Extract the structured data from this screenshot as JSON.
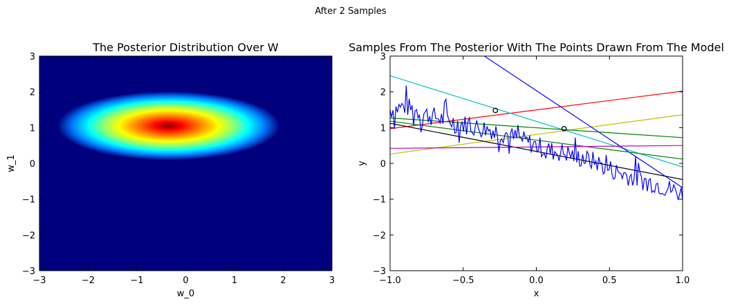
{
  "figure": {
    "suptitle": "After 2 Samples"
  },
  "chart_data": [
    {
      "type": "heatmap",
      "title": "The Posterior Distribution Over W",
      "xlabel": "w_0",
      "ylabel": "w_1",
      "xlim": [
        -3,
        3
      ],
      "ylim": [
        -3,
        3
      ],
      "xticks": [
        -3,
        -2,
        -1,
        0,
        1,
        2,
        3
      ],
      "yticks": [
        -3,
        -2,
        -1,
        0,
        1,
        2,
        3
      ],
      "xtick_labels": [
        "−3",
        "−2",
        "−1",
        "0",
        "1",
        "2",
        "3"
      ],
      "ytick_labels": [
        "−3",
        "−2",
        "−1",
        "0",
        "1",
        "2",
        "3"
      ],
      "colormap": "jet",
      "background_color": "#00007f",
      "peak_color": "#7f0000",
      "posterior": {
        "mean_w0": -0.35,
        "mean_w1": 1.05,
        "spread_w0": 0.95,
        "spread_w1": 0.32
      },
      "grid": false,
      "legend": "none"
    },
    {
      "type": "line",
      "title": "Samples From The Posterior With The Points Drawn From The Model",
      "xlabel": "x",
      "ylabel": "y",
      "xlim": [
        -1.0,
        1.0
      ],
      "ylim": [
        -3,
        3
      ],
      "xticks": [
        -1.0,
        -0.5,
        0.0,
        0.5,
        1.0
      ],
      "yticks": [
        -3,
        -2,
        -1,
        0,
        1,
        2,
        3
      ],
      "xtick_labels": [
        "−1.0",
        "−0.5",
        "0.0",
        "0.5",
        "1.0"
      ],
      "ytick_labels": [
        "−3",
        "−2",
        "−1",
        "0",
        "1",
        "2",
        "3"
      ],
      "sample_lines": [
        {
          "color": "#ff0000",
          "x": [
            -1,
            1
          ],
          "y": [
            0.97,
            2.02
          ]
        },
        {
          "color": "#bfbf00",
          "x": [
            -1,
            1
          ],
          "y": [
            0.26,
            1.36
          ]
        },
        {
          "color": "#00bfbf",
          "x": [
            -1,
            1
          ],
          "y": [
            2.45,
            -0.1
          ]
        },
        {
          "color": "#0000ff",
          "x": [
            -1,
            1
          ],
          "y": [
            4.75,
            -0.68
          ]
        },
        {
          "color": "#008000",
          "x": [
            -1,
            1
          ],
          "y": [
            1.27,
            0.72
          ]
        },
        {
          "color": "#008000",
          "x": [
            -1,
            1
          ],
          "y": [
            1.18,
            0.12
          ]
        },
        {
          "color": "#000000",
          "x": [
            -1,
            1
          ],
          "y": [
            1.12,
            -0.45
          ]
        },
        {
          "color": "#bf00bf",
          "x": [
            -1,
            1
          ],
          "y": [
            0.42,
            0.5
          ]
        }
      ],
      "noisy_target": {
        "color": "#0000ff",
        "x": [
          -1.0,
          -0.9,
          -0.8,
          -0.7,
          -0.6,
          -0.5,
          -0.4,
          -0.3,
          -0.2,
          -0.1,
          0.0,
          0.1,
          0.2,
          0.3,
          0.4,
          0.5,
          0.6,
          0.7,
          0.8,
          0.9,
          1.0
        ],
        "y": [
          1.5,
          1.6,
          1.45,
          1.3,
          1.2,
          1.1,
          1.0,
          0.95,
          0.8,
          0.65,
          0.5,
          0.35,
          0.3,
          0.15,
          0.05,
          -0.15,
          -0.3,
          -0.45,
          -0.55,
          -0.7,
          -0.85
        ],
        "noise_amplitude": 0.28,
        "samples": 200
      },
      "observed_points": {
        "edge_color": "#000000",
        "x": [
          -0.28,
          0.19
        ],
        "y": [
          1.48,
          0.97
        ]
      },
      "grid": false,
      "legend": "none"
    }
  ]
}
